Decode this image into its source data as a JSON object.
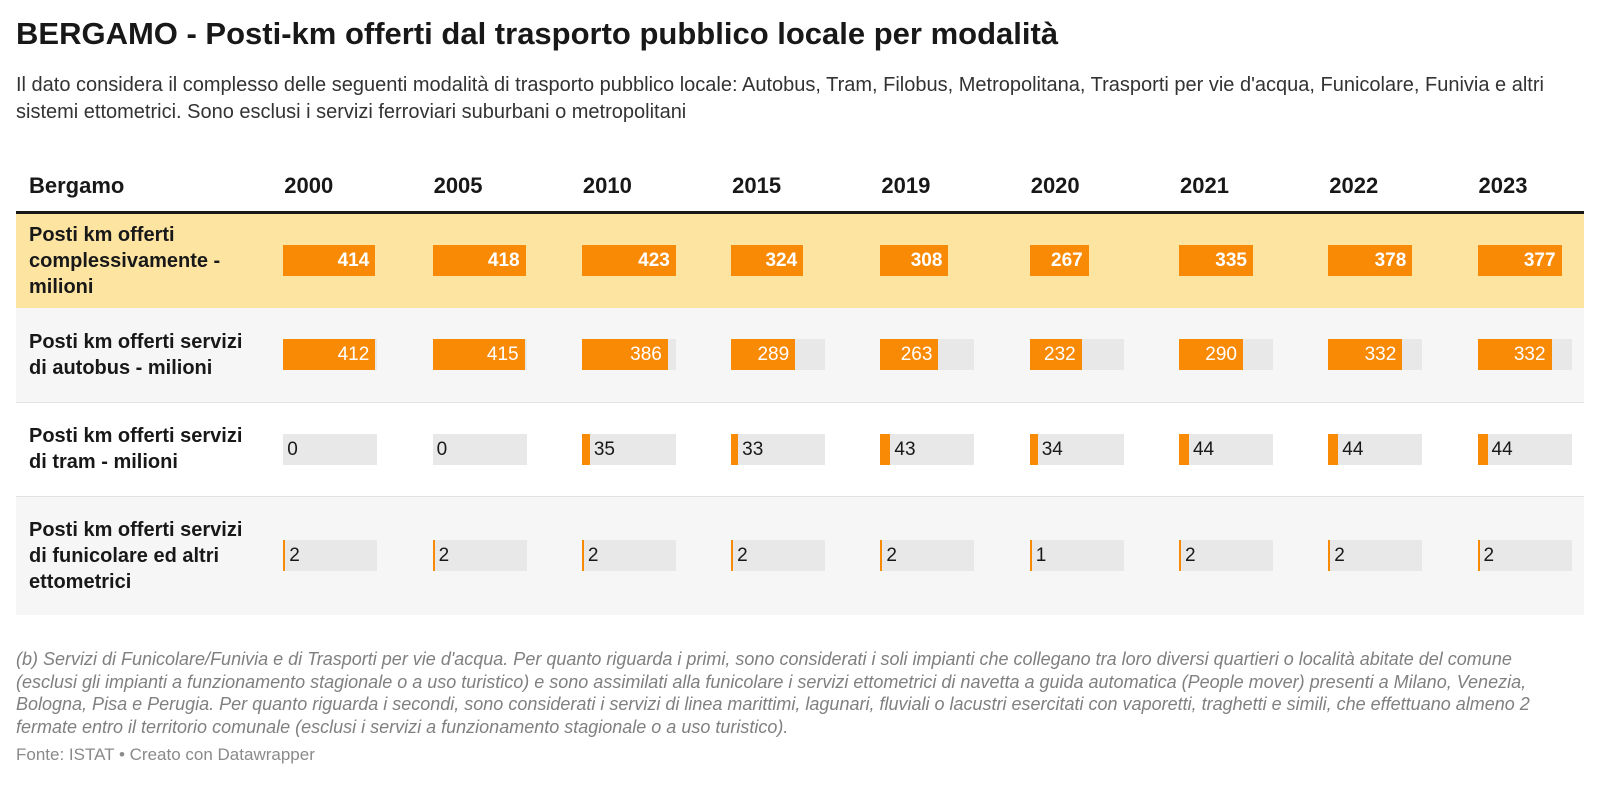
{
  "title": "BERGAMO - Posti-km offerti dal trasporto pubblico locale per modalità",
  "subtitle": "Il dato considera il complesso delle seguenti modalità di trasporto pubblico locale: Autobus, Tram, Filobus, Metropolitana, Trasporti per vie d'acqua, Funicolare, Funivia e altri sistemi ettometrici. Sono esclusi i servizi ferroviari suburbani o metropolitani",
  "chart_data": {
    "type": "table",
    "header_label": "Bergamo",
    "columns": [
      "2000",
      "2005",
      "2010",
      "2015",
      "2019",
      "2020",
      "2021",
      "2022",
      "2023"
    ],
    "bar_color": "#f98a06",
    "highlight_row_color": "#fde4a0",
    "rows": [
      {
        "label": "Posti km offerti complessivamente -milioni",
        "values": [
          414,
          418,
          423,
          324,
          308,
          267,
          335,
          378,
          377
        ],
        "max": 423
      },
      {
        "label": "Posti km offerti servizi di autobus - milioni",
        "values": [
          412,
          415,
          386,
          289,
          263,
          232,
          290,
          332,
          332
        ],
        "max": 423
      },
      {
        "label": "Posti km offerti servizi di tram - milioni",
        "values": [
          0,
          0,
          35,
          33,
          43,
          34,
          44,
          44,
          44
        ],
        "max": 423
      },
      {
        "label": "Posti km offerti servizi di funicolare ed altri ettometrici",
        "values": [
          2,
          2,
          2,
          2,
          2,
          1,
          2,
          2,
          2
        ],
        "max": 423
      }
    ]
  },
  "note": "(b) Servizi di Funicolare/Funivia e di Trasporti per vie d'acqua. Per quanto riguarda i primi, sono considerati i soli impianti che collegano tra loro diversi quartieri o località abitate del comune (esclusi gli impianti a funzionamento stagionale o a uso turistico) e sono assimilati alla funicolare i servizi ettometrici di navetta a guida automatica (People mover) presenti a Milano, Venezia, Bologna, Pisa e Perugia. Per quanto riguarda i secondi, sono considerati i servizi di linea marittimi, lagunari, fluviali o lacustri esercitati con vaporetti, traghetti e simili, che effettuano almeno 2 fermate entro il territorio comunale (esclusi i servizi a funzionamento stagionale o a uso turistico).",
  "source": "Fonte: ISTAT • Creato con Datawrapper"
}
